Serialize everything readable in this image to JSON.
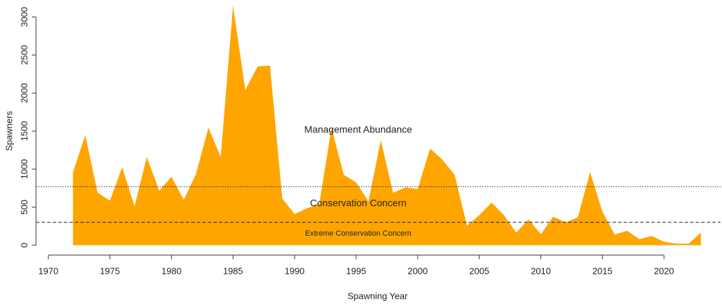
{
  "chart_data": {
    "type": "area",
    "x_label": "Spawning Year",
    "y_label": "Spawners",
    "x": [
      1972,
      1973,
      1974,
      1975,
      1976,
      1977,
      1978,
      1979,
      1980,
      1981,
      1982,
      1983,
      1984,
      1985,
      1986,
      1987,
      1988,
      1989,
      1990,
      1991,
      1992,
      1993,
      1994,
      1995,
      1996,
      1997,
      1998,
      1999,
      2000,
      2001,
      2002,
      2003,
      2004,
      2005,
      2006,
      2007,
      2008,
      2009,
      2010,
      2011,
      2012,
      2013,
      2014,
      2015,
      2016,
      2017,
      2018,
      2019,
      2020,
      2021,
      2022,
      2023
    ],
    "series": [
      {
        "color": "#ffa500",
        "values": [
          960,
          1445,
          690,
          585,
          1025,
          510,
          1160,
          715,
          900,
          595,
          940,
          1545,
          1160,
          3150,
          2040,
          2350,
          2360,
          615,
          410,
          485,
          540,
          1540,
          925,
          825,
          575,
          1380,
          690,
          760,
          740,
          1270,
          1125,
          925,
          255,
          395,
          560,
          395,
          165,
          340,
          145,
          375,
          300,
          365,
          960,
          440,
          140,
          190,
          80,
          120,
          45,
          20,
          20,
          165
        ]
      }
    ],
    "reference_lines": [
      {
        "value": 770,
        "style": "dotted"
      },
      {
        "value": 300,
        "style": "dashed"
      }
    ],
    "annotations": [
      "Management Abundance",
      "Conservation Concern",
      "Extreme Conservation Concern"
    ],
    "xlim": [
      1969,
      2024.6
    ],
    "xticks": [
      1970,
      1975,
      1980,
      1985,
      1990,
      1995,
      2000,
      2005,
      2010,
      2015,
      2020
    ],
    "ylim": [
      -130,
      3150
    ],
    "yticks": [
      0,
      500,
      1000,
      1500,
      2000,
      2500,
      3000
    ]
  }
}
